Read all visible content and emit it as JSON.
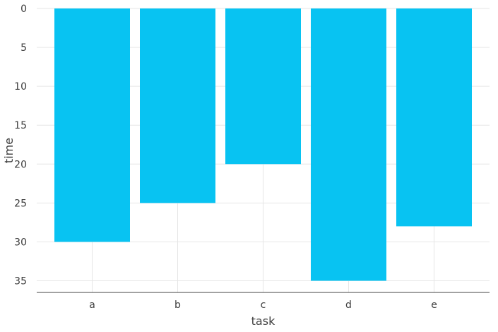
{
  "chart_data": {
    "type": "bar",
    "orientation": "vertical",
    "y_axis_inverted": true,
    "categories": [
      "a",
      "b",
      "c",
      "d",
      "e"
    ],
    "values": [
      30,
      25,
      20,
      35,
      28
    ],
    "xlabel": "task",
    "ylabel": "time",
    "ylim": [
      0,
      36.5
    ],
    "yticks": [
      0,
      5,
      10,
      15,
      20,
      25,
      30,
      35
    ],
    "grid": true,
    "bar_color": "#08c3f2",
    "grid_color": "#e6e6e6"
  }
}
